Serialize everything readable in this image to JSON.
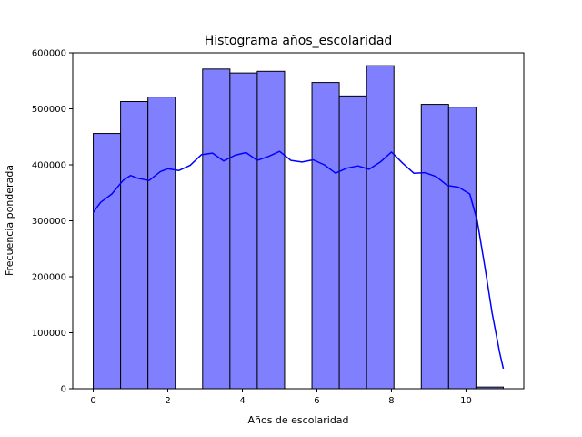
{
  "chart_data": {
    "type": "bar",
    "title": "Histograma años_escolaridad",
    "xlabel": "Años de escolaridad",
    "ylabel": "Frecuencia ponderada",
    "xlim": [
      -0.55,
      11.55
    ],
    "ylim": [
      0,
      600000
    ],
    "xticks": [
      0,
      2,
      4,
      6,
      8,
      10
    ],
    "yticks": [
      0,
      100000,
      200000,
      300000,
      400000,
      500000,
      600000
    ],
    "bin_edges": [
      0,
      0.733,
      1.467,
      2.2,
      2.933,
      3.667,
      4.4,
      5.133,
      5.867,
      6.6,
      7.333,
      8.067,
      8.8,
      9.533,
      10.267,
      11
    ],
    "values": [
      456000,
      513000,
      521000,
      0,
      571000,
      564000,
      567000,
      0,
      547000,
      523000,
      577000,
      0,
      508000,
      503000,
      3000
    ],
    "kde": {
      "x": [
        0,
        0.2,
        0.5,
        0.8,
        1.0,
        1.2,
        1.5,
        1.8,
        2.0,
        2.3,
        2.6,
        2.9,
        3.2,
        3.5,
        3.8,
        4.1,
        4.4,
        4.7,
        5.0,
        5.3,
        5.6,
        5.9,
        6.2,
        6.5,
        6.8,
        7.1,
        7.4,
        7.7,
        8.0,
        8.3,
        8.6,
        8.9,
        9.2,
        9.5,
        9.8,
        10.1,
        10.3,
        10.5,
        10.7,
        10.9,
        11.0
      ],
      "y": [
        315000,
        333000,
        348000,
        372000,
        381000,
        376000,
        372000,
        388000,
        393000,
        390000,
        399000,
        418000,
        421000,
        407000,
        417000,
        422000,
        408000,
        415000,
        424000,
        408000,
        405000,
        409000,
        400000,
        385000,
        394000,
        398000,
        392000,
        405000,
        423000,
        403000,
        385000,
        386000,
        379000,
        363000,
        360000,
        348000,
        300000,
        220000,
        135000,
        65000,
        36000
      ]
    },
    "colors": {
      "bar_fill": "#8080ff",
      "bar_edge": "#000000",
      "kde_line": "#0000ff"
    },
    "grid": false,
    "legend": "none"
  }
}
